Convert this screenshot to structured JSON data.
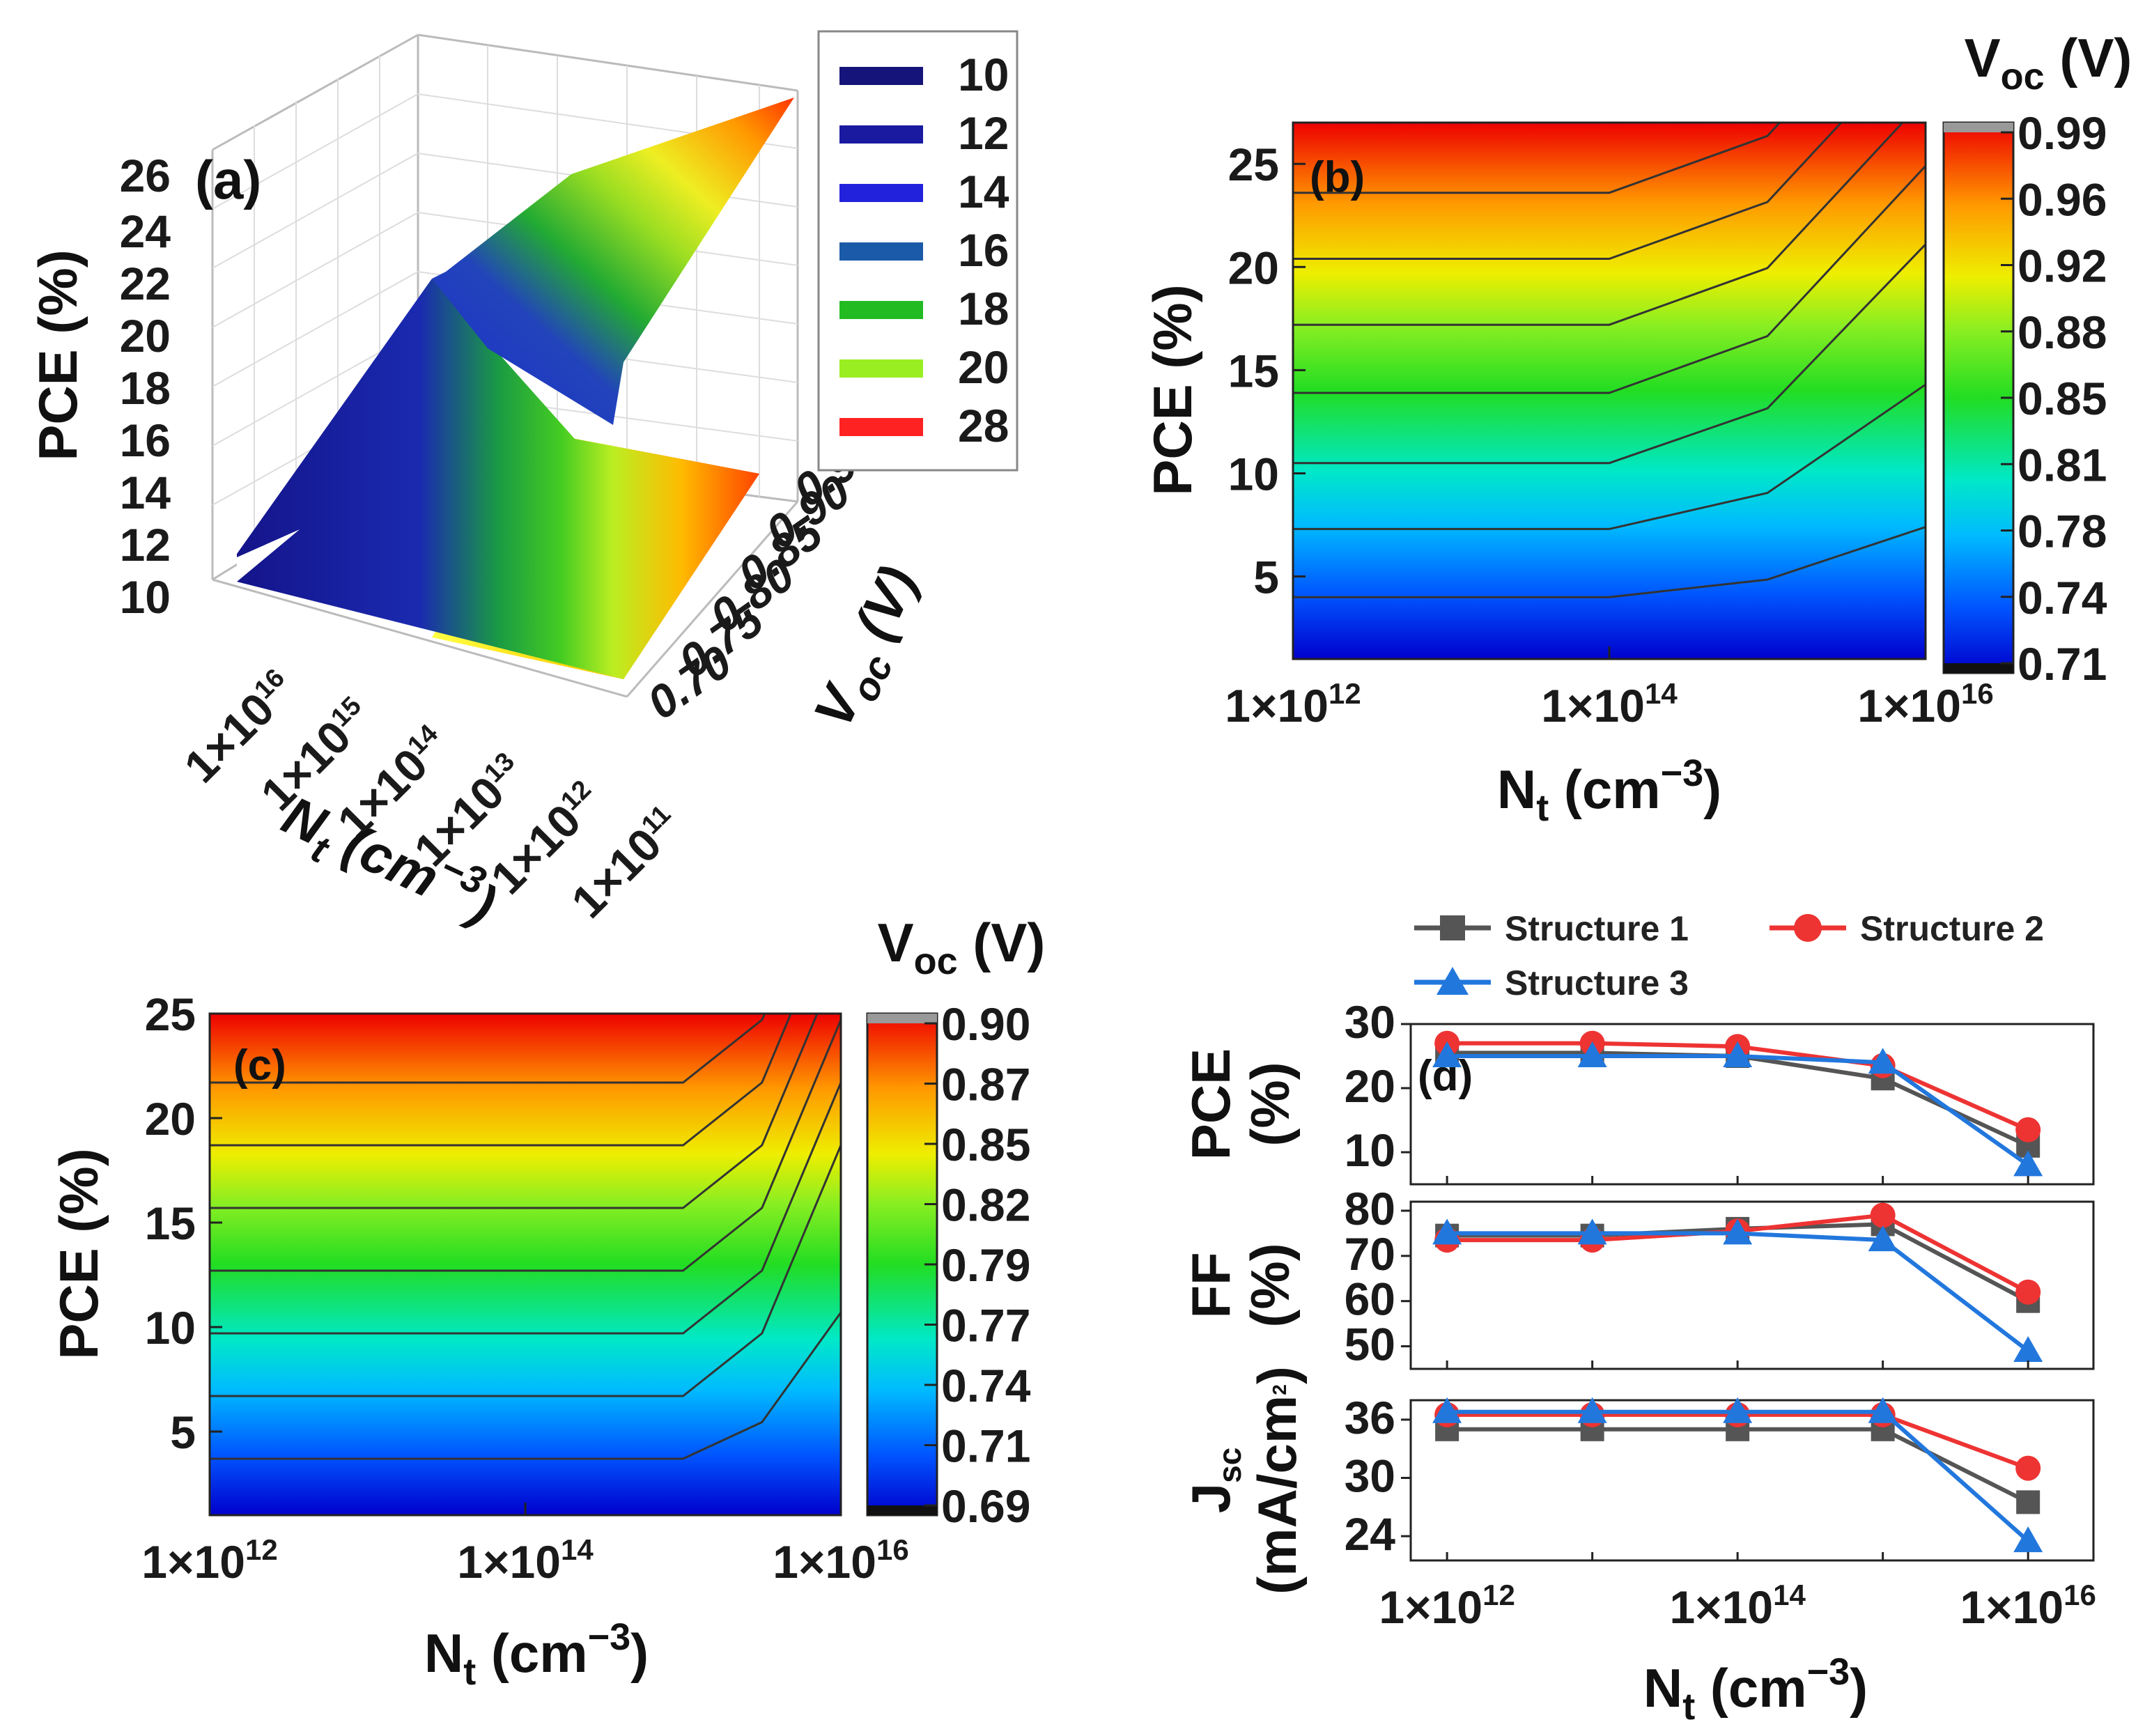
{
  "colors": {
    "structure_1": "#555555",
    "structure_2": "#ee3333",
    "structure_3": "#2277dd"
  },
  "chart_data": [
    {
      "id": "a",
      "type": "surface3d",
      "label": "(a)",
      "zlabel": "PCE (%)",
      "z_ticks": [
        "10",
        "12",
        "14",
        "16",
        "18",
        "20",
        "22",
        "24",
        "26"
      ],
      "xlabel": "N",
      "xlabel_sub": "t",
      "xlabel_unit": "(cm",
      "xlabel_exp": "−3",
      "xlabel_close": ")",
      "x_ticks": [
        "1×10",
        "1×10",
        "1×10",
        "1×10",
        "1×10",
        "1×10"
      ],
      "x_tick_exp": [
        "16",
        "15",
        "14",
        "13",
        "12",
        "11"
      ],
      "ylabel": "V",
      "ylabel_sub": "oc",
      "ylabel_unit": "(V)",
      "y_ticks": [
        "0.70",
        "0.75",
        "0.80",
        "0.85",
        "0.90",
        "0.95"
      ],
      "legend": [
        {
          "label": "10",
          "color": "#14147a"
        },
        {
          "label": "12",
          "color": "#1a1aa0"
        },
        {
          "label": "14",
          "color": "#2222dd"
        },
        {
          "label": "16",
          "color": "#1a5aa8"
        },
        {
          "label": "18",
          "color": "#22bb22"
        },
        {
          "label": "20",
          "color": "#99ee22"
        },
        {
          "label": "28",
          "color": "#ff2222"
        }
      ]
    },
    {
      "id": "b",
      "type": "contour",
      "label": "(b)",
      "ylabel": "PCE (%)",
      "y_ticks": [
        "5",
        "10",
        "15",
        "20",
        "25"
      ],
      "y_values": [
        5,
        10,
        15,
        20,
        25
      ],
      "ylim": [
        1,
        27
      ],
      "xlabel": "N",
      "xlabel_sub": "t",
      "xlabel_unit": "(cm",
      "xlabel_exp": "−3",
      "xlabel_close": ")",
      "x_ticks": [
        "1×10",
        "1×10",
        "1×10"
      ],
      "x_tick_exp": [
        "12",
        "14",
        "16"
      ],
      "x_log_values": [
        12,
        14,
        16
      ],
      "xlim_log": [
        12,
        16
      ],
      "colorbar_title": "V",
      "colorbar_title_sub": "oc",
      "colorbar_title_unit": "(V)",
      "colorbar_ticks": [
        "0.99",
        "0.96",
        "0.92",
        "0.88",
        "0.85",
        "0.81",
        "0.78",
        "0.74",
        "0.71"
      ],
      "contour_pce_levels": [
        4,
        7.3,
        10.5,
        13.9,
        17.2,
        20.4,
        23.6
      ],
      "contour_break_log": [
        14,
        15
      ],
      "contour_offsets_at_16": [
        3.4,
        7,
        10.6,
        11,
        11,
        11,
        11
      ]
    },
    {
      "id": "c",
      "type": "contour",
      "label": "(c)",
      "ylabel": "PCE (%)",
      "y_ticks": [
        "5",
        "10",
        "15",
        "20",
        "25"
      ],
      "y_values": [
        5,
        10,
        15,
        20,
        25
      ],
      "ylim": [
        1,
        25
      ],
      "xlabel": "N",
      "xlabel_sub": "t",
      "xlabel_unit": "(cm",
      "xlabel_exp": "−3",
      "xlabel_close": ")",
      "x_ticks": [
        "1×10",
        "1×10",
        "1×10"
      ],
      "x_tick_exp": [
        "12",
        "14",
        "16"
      ],
      "x_log_values": [
        12,
        14,
        16
      ],
      "xlim_log": [
        12,
        16
      ],
      "colorbar_title": "V",
      "colorbar_title_sub": "oc",
      "colorbar_title_unit": "(V)",
      "colorbar_ticks": [
        "0.90",
        "0.87",
        "0.85",
        "0.82",
        "0.79",
        "0.77",
        "0.74",
        "0.71",
        "0.69"
      ],
      "contour_pce_levels": [
        3.7,
        6.7,
        9.7,
        12.7,
        15.7,
        18.7,
        21.7
      ],
      "contour_break_log": [
        15,
        15.5
      ],
      "contour_offsets_at_16": [
        7,
        12,
        12,
        12,
        12,
        12,
        12
      ]
    },
    {
      "id": "d",
      "type": "line",
      "label": "(d)",
      "xlabel": "N",
      "xlabel_sub": "t",
      "xlabel_unit": "(cm",
      "xlabel_exp": "−3",
      "xlabel_close": ")",
      "x_ticks": [
        "1×10",
        "1×10",
        "1×10"
      ],
      "x_tick_exp": [
        "12",
        "14",
        "16"
      ],
      "x_log": [
        12,
        13,
        14,
        15,
        16
      ],
      "xlim_log": [
        11.75,
        16.45
      ],
      "legend": [
        "Structure 1",
        "Structure 2",
        "Structure 3"
      ],
      "panels": [
        {
          "ylabel_line1": "PCE",
          "ylabel_line2": "(%)",
          "y_ticks": [
            "10",
            "20",
            "30"
          ],
          "y_values": [
            10,
            20,
            30
          ],
          "ylim": [
            5,
            30
          ],
          "series": [
            {
              "name": "Structure 1",
              "marker": "square",
              "values": [
                25.5,
                25.5,
                25,
                21.5,
                11
              ]
            },
            {
              "name": "Structure 2",
              "marker": "circle",
              "values": [
                27,
                27,
                26.5,
                23.5,
                13.5
              ]
            },
            {
              "name": "Structure 3",
              "marker": "triangle",
              "values": [
                25,
                25,
                25,
                24,
                8
              ]
            }
          ]
        },
        {
          "ylabel_line1": "FF",
          "ylabel_line2": "(%)",
          "y_ticks": [
            "50",
            "60",
            "70",
            "80"
          ],
          "y_values": [
            50,
            60,
            70,
            80
          ],
          "ylim": [
            45,
            82
          ],
          "series": [
            {
              "name": "Structure 1",
              "marker": "square",
              "values": [
                74.5,
                74.5,
                76,
                77,
                60
              ]
            },
            {
              "name": "Structure 2",
              "marker": "circle",
              "values": [
                73.5,
                73.5,
                75.5,
                79,
                62
              ]
            },
            {
              "name": "Structure 3",
              "marker": "triangle",
              "values": [
                75,
                75,
                75,
                73.5,
                49
              ]
            }
          ]
        },
        {
          "ylabel_line1": "J",
          "ylabel_sub": "sc",
          "ylabel_line2": "(mA/cm",
          "ylabel_line2_sup": "2",
          "ylabel_line2_close": ")",
          "y_ticks": [
            "24",
            "30",
            "36"
          ],
          "y_values": [
            24,
            30,
            36
          ],
          "ylim": [
            21.5,
            38
          ],
          "series": [
            {
              "name": "Structure 1",
              "marker": "square",
              "values": [
                35,
                35,
                35,
                35,
                27.5
              ]
            },
            {
              "name": "Structure 2",
              "marker": "circle",
              "values": [
                36.5,
                36.5,
                36.5,
                36.5,
                31
              ]
            },
            {
              "name": "Structure 3",
              "marker": "triangle",
              "values": [
                36.8,
                36.8,
                36.8,
                36.8,
                23.5
              ]
            }
          ]
        }
      ]
    }
  ]
}
